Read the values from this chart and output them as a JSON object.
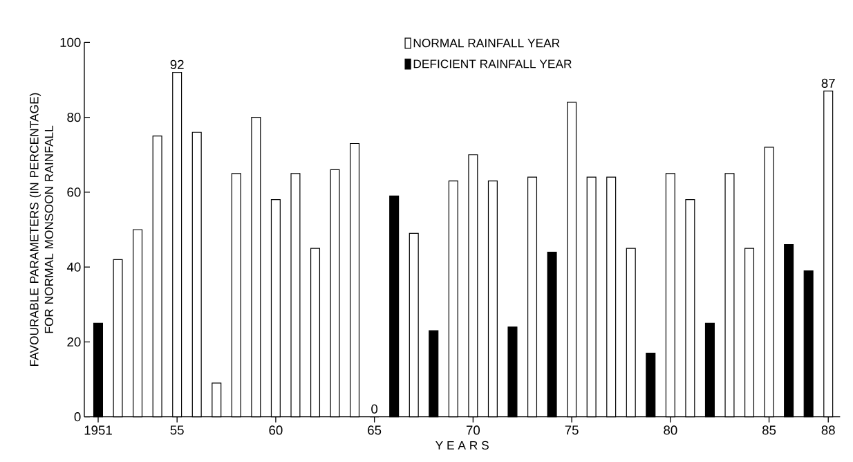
{
  "chart_data": {
    "type": "bar",
    "xlabel": "Y E A R S",
    "ylabel": "FAVOURABLE PARAMETERS (IN PERCENTAGE) FOR NORMAL MONSOON RAINFALL",
    "categories": [
      "1951",
      null,
      null,
      null,
      "55",
      null,
      null,
      null,
      null,
      "60",
      null,
      null,
      null,
      null,
      "65",
      null,
      null,
      null,
      null,
      "70",
      null,
      null,
      null,
      null,
      "75",
      null,
      null,
      null,
      null,
      "80",
      null,
      null,
      null,
      null,
      "85",
      null,
      null,
      "88"
    ],
    "series": [
      {
        "name": "NORMAL RAINFALL YEAR",
        "color": "#ffffff",
        "values": [
          null,
          42,
          50,
          75,
          92,
          76,
          9,
          65,
          80,
          58,
          65,
          45,
          66,
          73,
          null,
          null,
          49,
          null,
          63,
          70,
          63,
          null,
          64,
          null,
          84,
          64,
          64,
          45,
          null,
          65,
          58,
          null,
          65,
          45,
          72,
          null,
          null,
          87
        ],
        "value_labels": [
          null,
          null,
          null,
          null,
          "92",
          null,
          null,
          null,
          null,
          null,
          null,
          null,
          null,
          null,
          null,
          null,
          null,
          null,
          null,
          null,
          null,
          null,
          null,
          null,
          null,
          null,
          null,
          null,
          null,
          null,
          null,
          null,
          null,
          null,
          null,
          null,
          null,
          "87"
        ]
      },
      {
        "name": "DEFICIENT RAINFALL YEAR",
        "color": "#000000",
        "values": [
          25,
          null,
          null,
          null,
          null,
          null,
          null,
          null,
          null,
          null,
          null,
          null,
          null,
          null,
          0,
          59,
          null,
          23,
          null,
          null,
          null,
          24,
          null,
          44,
          null,
          null,
          null,
          null,
          17,
          null,
          null,
          25,
          null,
          null,
          null,
          46,
          39,
          null
        ],
        "value_labels": [
          null,
          null,
          null,
          null,
          null,
          null,
          null,
          null,
          null,
          null,
          null,
          null,
          null,
          null,
          "0",
          null,
          null,
          null,
          null,
          null,
          null,
          null,
          null,
          null,
          null,
          null,
          null,
          null,
          null,
          null,
          null,
          null,
          null,
          null,
          null,
          null,
          null,
          null
        ]
      }
    ],
    "ylim": [
      0,
      100
    ],
    "yticks": [
      0,
      20,
      40,
      60,
      80,
      100
    ],
    "legend": "top"
  }
}
